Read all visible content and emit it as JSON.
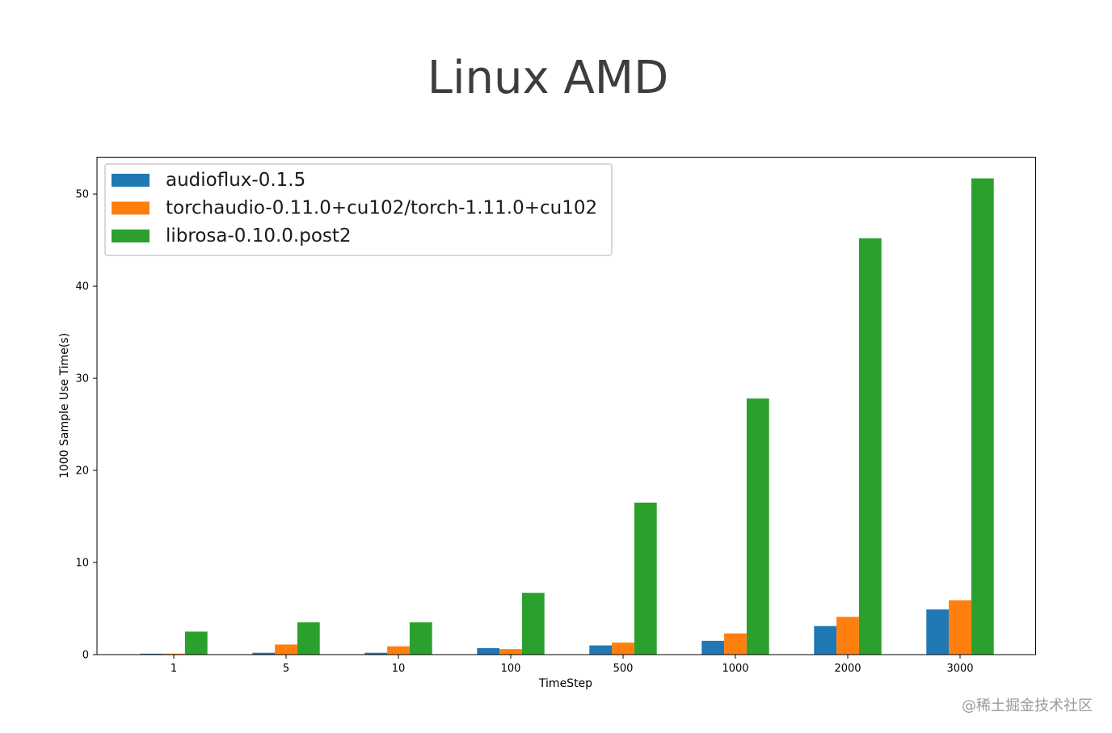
{
  "chart_data": {
    "type": "bar",
    "title": "Linux AMD",
    "xlabel": "TimeStep",
    "ylabel": "1000 Sample Use Time(s)",
    "categories": [
      "1",
      "5",
      "10",
      "100",
      "500",
      "1000",
      "2000",
      "3000"
    ],
    "ylim": [
      0,
      54
    ],
    "yticks": [
      0,
      10,
      20,
      30,
      40,
      50
    ],
    "grid": false,
    "legend_position": "top-left",
    "series": [
      {
        "name": "audioflux-0.1.5",
        "color": "#1f77b4",
        "values": [
          0.1,
          0.2,
          0.2,
          0.7,
          1.0,
          1.5,
          3.1,
          4.9
        ]
      },
      {
        "name": "torchaudio-0.11.0+cu102/torch-1.11.0+cu102",
        "color": "#ff7f0e",
        "values": [
          0.1,
          1.1,
          0.9,
          0.6,
          1.3,
          2.3,
          4.1,
          5.9
        ]
      },
      {
        "name": "librosa-0.10.0.post2",
        "color": "#2ca02c",
        "values": [
          2.5,
          3.5,
          3.5,
          6.7,
          16.5,
          27.8,
          45.2,
          51.7
        ]
      }
    ]
  },
  "watermark": "@稀土掘金技术社区"
}
